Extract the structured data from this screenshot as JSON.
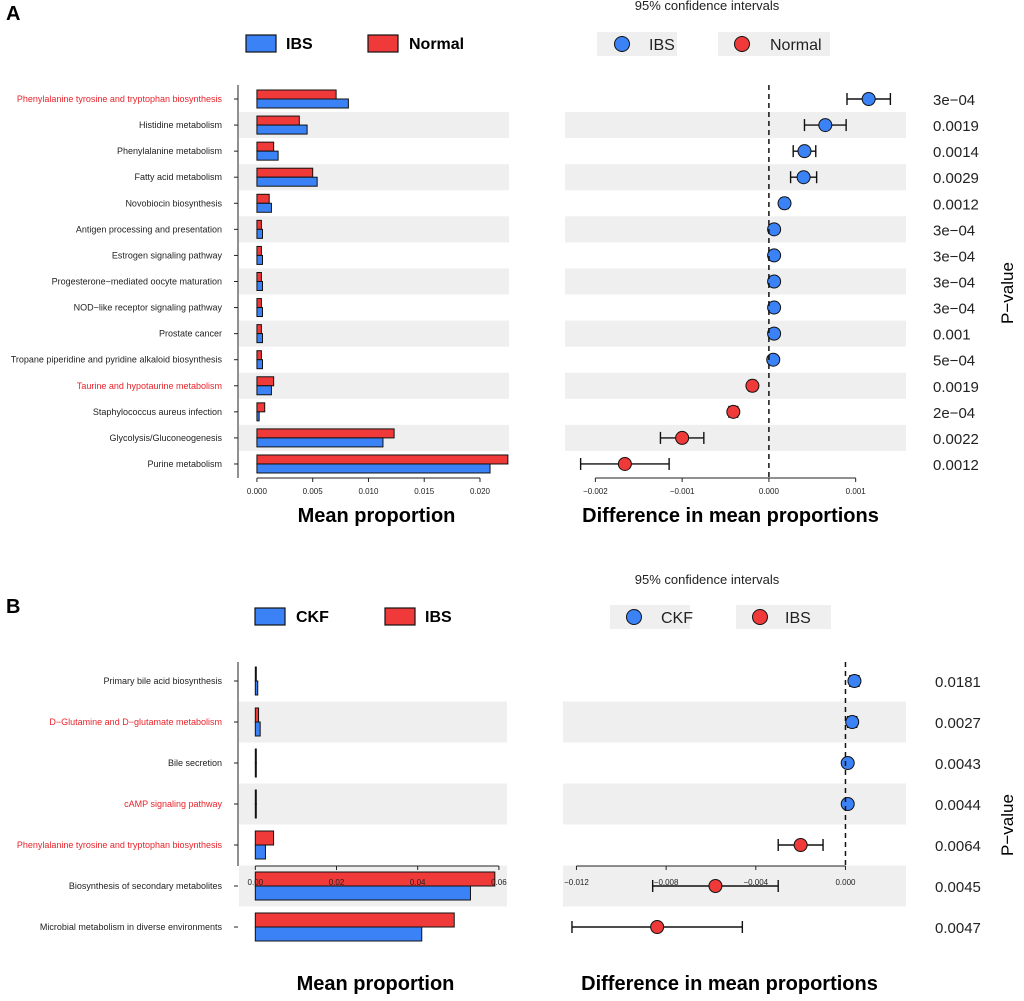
{
  "colors": {
    "group1": "#3b82f6",
    "group2": "#f03a3a",
    "highlight": "#e8232a",
    "text": "#222222",
    "stripe": "#efefef"
  },
  "chart_data": [
    {
      "id": "A",
      "type": "bar",
      "panel_label": "A",
      "ci_title": "95% confidence intervals",
      "pvalue_title": "P−value",
      "xlabel_left": "Mean proportion",
      "xlabel_right": "Difference in mean proportions",
      "legend": [
        {
          "name": "IBS",
          "color": "#3b82f6"
        },
        {
          "name": "Normal",
          "color": "#f03a3a"
        }
      ],
      "categories": [
        "Phenylalanine tyrosine and tryptophan biosynthesis",
        "Histidine metabolism",
        "Phenylalanine metabolism",
        "Fatty acid metabolism",
        "Novobiocin biosynthesis",
        "Antigen processing and presentation",
        "Estrogen signaling pathway",
        "Progesterone−mediated oocyte maturation",
        "NOD−like receptor signaling pathway",
        "Prostate cancer",
        "Tropane piperidine and pyridine alkaloid biosynthesis",
        "Taurine and hypotaurine metabolism",
        "Staphylococcus aureus infection",
        "Glycolysis/Gluconeogenesis",
        "Purine metabolism"
      ],
      "highlighted": [
        0,
        11
      ],
      "series": [
        {
          "name": "IBS",
          "values": [
            0.0082,
            0.0045,
            0.0019,
            0.0054,
            0.0013,
            0.0005,
            0.0005,
            0.0005,
            0.0005,
            0.0005,
            0.0005,
            0.0013,
            0.0002,
            0.0113,
            0.0209
          ]
        },
        {
          "name": "Normal",
          "values": [
            0.0071,
            0.0038,
            0.0015,
            0.005,
            0.0011,
            0.0004,
            0.0004,
            0.0004,
            0.0004,
            0.0004,
            0.0004,
            0.0015,
            0.0007,
            0.0123,
            0.0225
          ]
        }
      ],
      "xlim_left": [
        -0.0008,
        0.0226
      ],
      "xticks_left": [
        "0.000",
        "0.005",
        "0.010",
        "0.015",
        "0.020"
      ],
      "xtick_values_left": [
        0,
        0.005,
        0.01,
        0.015,
        0.02
      ],
      "differences": [
        0.00115,
        0.00065,
        0.00041,
        0.0004,
        0.00018,
        6e-05,
        6e-05,
        6e-05,
        6e-05,
        6e-05,
        5e-05,
        -0.00019,
        -0.00041,
        -0.001,
        -0.00166
      ],
      "ci_low": [
        0.0009,
        0.00041,
        0.00028,
        0.00025,
        0.00014,
        4e-05,
        4e-05,
        4e-05,
        4e-05,
        4e-05,
        3e-05,
        -0.00023,
        -0.00046,
        -0.00125,
        -0.00217
      ],
      "ci_high": [
        0.0014,
        0.00089,
        0.00054,
        0.00055,
        0.00022,
        8e-05,
        8e-05,
        8e-05,
        8e-05,
        8e-05,
        7e-05,
        -0.00015,
        -0.00036,
        -0.00075,
        -0.00115
      ],
      "xlim_right": [
        -0.00235,
        0.00158
      ],
      "xticks_right": [
        "−0.002",
        "−0.001",
        "0.000",
        "0.001"
      ],
      "xtick_values_right": [
        -0.002,
        -0.001,
        0,
        0.001
      ],
      "p_values": [
        "3e−04",
        "0.0019",
        "0.0014",
        "0.0029",
        "0.0012",
        "3e−04",
        "3e−04",
        "3e−04",
        "3e−04",
        "0.001",
        "5e−04",
        "0.0019",
        "2e−04",
        "0.0022",
        "0.0012"
      ]
    },
    {
      "id": "B",
      "type": "bar",
      "panel_label": "B",
      "ci_title": "95% confidence intervals",
      "pvalue_title": "P−value",
      "xlabel_left": "Mean proportion",
      "xlabel_right": "Difference in mean proportions",
      "legend": [
        {
          "name": "CKF",
          "color": "#3b82f6"
        },
        {
          "name": "IBS",
          "color": "#f03a3a"
        }
      ],
      "categories": [
        "Primary bile acid biosynthesis",
        "D−Glutamine and D−glutamate metabolism",
        "Bile secretion",
        "cAMP signaling pathway",
        "Phenylalanine tyrosine and tryptophan biosynthesis",
        "Biosynthesis of secondary metabolites",
        "Microbial metabolism in diverse environments"
      ],
      "highlighted": [
        1,
        3,
        4
      ],
      "series": [
        {
          "name": "CKF",
          "values": [
            0.0006,
            0.0012,
            0.0001,
            0.0001,
            0.0025,
            0.053,
            0.041
          ]
        },
        {
          "name": "IBS",
          "values": [
            0.0002,
            0.0008,
            0.0001,
            0.0001,
            0.0045,
            0.059,
            0.049
          ]
        }
      ],
      "xlim_left": [
        -0.0018,
        0.062
      ],
      "xticks_left": [
        "0.00",
        "0.02",
        "0.04",
        "0.06"
      ],
      "xtick_values_left": [
        0,
        0.02,
        0.04,
        0.06
      ],
      "differences": [
        0.0004,
        0.0003,
        0.0001,
        0.0001,
        -0.002,
        -0.0058,
        -0.0084
      ],
      "ci_low": [
        0.0002,
        0.0001,
        0.0,
        0.0,
        -0.003,
        -0.0086,
        -0.0122
      ],
      "ci_high": [
        0.0006,
        0.0005,
        0.0002,
        0.0002,
        -0.001,
        -0.003,
        -0.0046
      ],
      "xlim_right": [
        -0.0126,
        0.0027
      ],
      "xticks_right": [
        "−0.012",
        "−0.008",
        "−0.004",
        "0.000"
      ],
      "xtick_values_right": [
        -0.012,
        -0.008,
        -0.004,
        0
      ],
      "p_values": [
        "0.0181",
        "0.0027",
        "0.0043",
        "0.0044",
        "0.0064",
        "0.0045",
        "0.0047"
      ]
    }
  ]
}
